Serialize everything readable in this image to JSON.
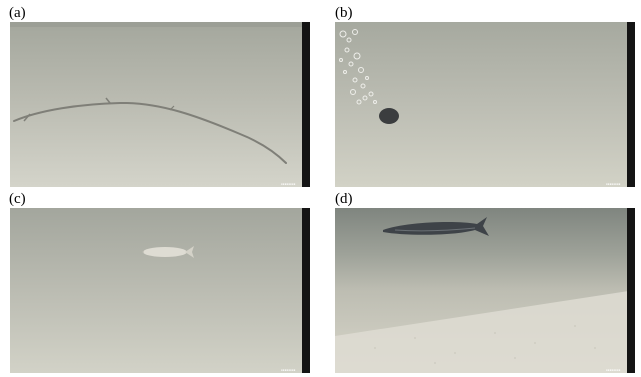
{
  "figure": {
    "panels": [
      {
        "label": "(a)",
        "subject": "submerged-branch"
      },
      {
        "label": "(b)",
        "subject": "bubbles-and-object"
      },
      {
        "label": "(c)",
        "subject": "pale-fish"
      },
      {
        "label": "(d)",
        "subject": "dark-fish-over-sandy-bottom"
      }
    ],
    "colors": {
      "water_top": "#a8aba1",
      "water_bottom": "#cfcfc4",
      "frame_edge": "#141414",
      "fish_dark": "#3e4348",
      "fish_pale": "#dedcd3"
    }
  }
}
